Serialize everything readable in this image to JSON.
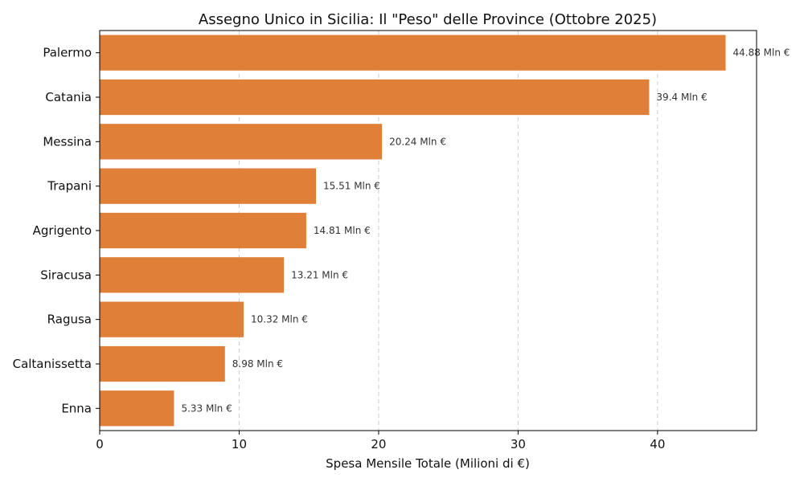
{
  "chart_data": {
    "type": "bar",
    "orientation": "horizontal",
    "title": "Assegno Unico in Sicilia: Il \"Peso\" delle Province (Ottobre 2025)",
    "xlabel": "Spesa Mensile Totale (Milioni di €)",
    "ylabel": "",
    "xlim": [
      0,
      47.1
    ],
    "xticks": [
      0,
      10,
      20,
      30,
      40
    ],
    "grid": "x, dashed",
    "bar_color": "#E07F38",
    "value_suffix": " Mln €",
    "categories": [
      "Palermo",
      "Catania",
      "Messina",
      "Trapani",
      "Agrigento",
      "Siracusa",
      "Ragusa",
      "Caltanissetta",
      "Enna"
    ],
    "values": [
      44.88,
      39.4,
      20.24,
      15.51,
      14.81,
      13.21,
      10.32,
      8.98,
      5.33
    ],
    "value_labels": [
      "44.88 Mln €",
      "39.4 Mln €",
      "20.24 Mln €",
      "15.51 Mln €",
      "14.81 Mln €",
      "13.21 Mln €",
      "10.32 Mln €",
      "8.98 Mln €",
      "5.33 Mln €"
    ]
  }
}
